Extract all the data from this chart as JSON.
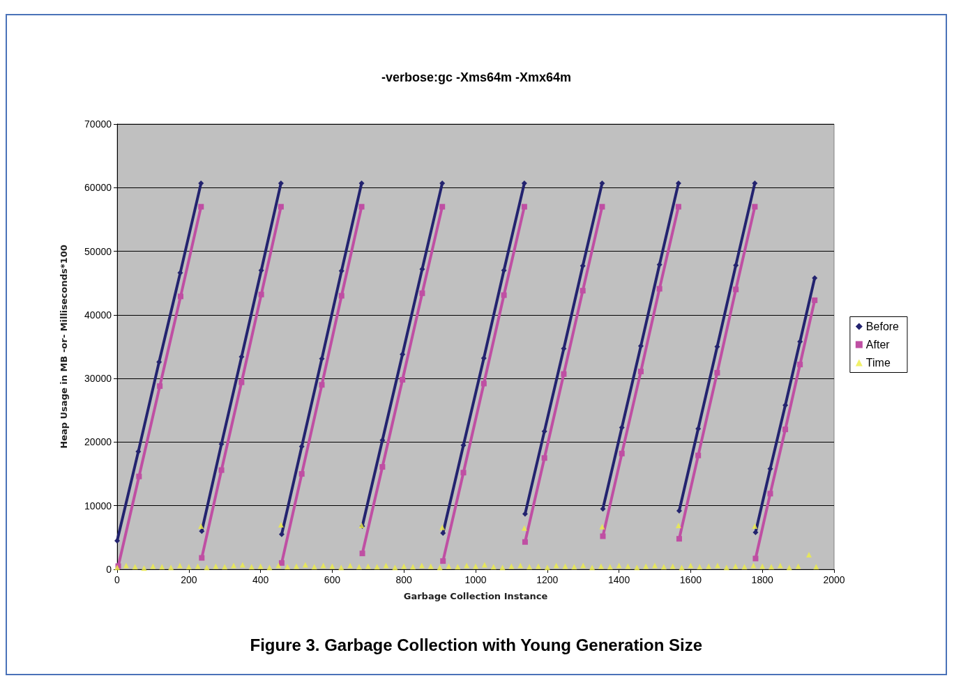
{
  "chart_data": {
    "type": "scatter",
    "title": "-verbose:gc -Xms64m -Xmx64m",
    "xlabel": "Garbage Collection Instance",
    "ylabel": "Heap Usage in MB -or- Milliseconds*100",
    "annotations": [
      "Figure 3. Garbage Collection with Young Generation Size"
    ],
    "xlim": [
      0,
      2000
    ],
    "xticks": [
      0,
      200,
      400,
      600,
      800,
      1000,
      1200,
      1400,
      1600,
      1800,
      2000
    ],
    "ylim": [
      0,
      70000
    ],
    "yticks": [
      0,
      10000,
      20000,
      30000,
      40000,
      50000,
      60000,
      70000
    ],
    "grid": "y",
    "legend": "right",
    "series": [
      {
        "name": "Before",
        "color": "#23236f",
        "type": "line",
        "marker": "diamond",
        "x": [
          0,
          59,
          117,
          176,
          234,
          235,
          236,
          291,
          347,
          402,
          457,
          458,
          459,
          515,
          571,
          626,
          682,
          683,
          684,
          740,
          796,
          851,
          907,
          908,
          909,
          966,
          1023,
          1079,
          1136,
          1137,
          1138,
          1192,
          1246,
          1299,
          1353,
          1354,
          1355,
          1408,
          1461,
          1513,
          1566,
          1567,
          1568,
          1621,
          1674,
          1726,
          1779,
          1780,
          1781,
          1822,
          1864,
          1905,
          1946
        ],
        "values": [
          4500,
          18500,
          32600,
          46600,
          60700,
          null,
          6000,
          19700,
          33400,
          47000,
          60700,
          null,
          5500,
          19300,
          33100,
          46900,
          60700,
          null,
          6800,
          20300,
          33800,
          47200,
          60700,
          null,
          5700,
          19500,
          33200,
          47000,
          60700,
          null,
          8700,
          21700,
          34700,
          47700,
          60700,
          null,
          9500,
          22300,
          35100,
          47900,
          60700,
          null,
          9200,
          22100,
          35000,
          47800,
          60700,
          null,
          5800,
          15800,
          25800,
          35800,
          45800
        ]
      },
      {
        "name": "After",
        "color": "#bf4fa3",
        "type": "line",
        "marker": "square",
        "x": [
          3,
          61,
          119,
          177,
          234,
          235,
          236,
          291,
          347,
          402,
          457,
          458,
          459,
          515,
          571,
          626,
          682,
          683,
          684,
          740,
          796,
          851,
          907,
          908,
          909,
          966,
          1023,
          1079,
          1136,
          1137,
          1138,
          1192,
          1246,
          1299,
          1353,
          1354,
          1355,
          1408,
          1461,
          1513,
          1566,
          1567,
          1568,
          1621,
          1674,
          1726,
          1779,
          1780,
          1781,
          1822,
          1864,
          1905,
          1946
        ],
        "values": [
          500,
          14600,
          28800,
          42900,
          57000,
          null,
          1800,
          15600,
          29400,
          43200,
          57000,
          null,
          1000,
          15000,
          29000,
          43000,
          57000,
          null,
          2500,
          16100,
          29800,
          43400,
          57000,
          null,
          1300,
          15200,
          29200,
          43100,
          57000,
          null,
          4300,
          17500,
          30700,
          43800,
          57000,
          null,
          5200,
          18200,
          31100,
          44100,
          57000,
          null,
          4800,
          17900,
          30900,
          44000,
          57000,
          null,
          1700,
          11900,
          22000,
          32200,
          42300
        ]
      },
      {
        "name": "Time",
        "color": "#eeee44",
        "type": "scatter",
        "marker": "triangle",
        "x": [
          0,
          25,
          50,
          75,
          100,
          125,
          150,
          175,
          200,
          225,
          234,
          250,
          275,
          300,
          325,
          350,
          375,
          400,
          425,
          450,
          457,
          475,
          500,
          525,
          550,
          575,
          600,
          625,
          650,
          675,
          682,
          700,
          725,
          750,
          775,
          800,
          825,
          850,
          875,
          900,
          907,
          925,
          950,
          975,
          1000,
          1025,
          1050,
          1075,
          1100,
          1125,
          1136,
          1150,
          1175,
          1200,
          1225,
          1250,
          1275,
          1300,
          1325,
          1350,
          1353,
          1375,
          1400,
          1425,
          1450,
          1475,
          1500,
          1525,
          1550,
          1566,
          1575,
          1600,
          1625,
          1650,
          1675,
          1700,
          1725,
          1750,
          1775,
          1779,
          1800,
          1825,
          1850,
          1875,
          1900,
          1930,
          1950
        ],
        "values": [
          300,
          600,
          400,
          200,
          500,
          400,
          300,
          600,
          400,
          500,
          6800,
          300,
          500,
          400,
          600,
          700,
          400,
          500,
          300,
          600,
          7000,
          400,
          500,
          700,
          400,
          600,
          500,
          300,
          600,
          400,
          6900,
          500,
          400,
          600,
          300,
          500,
          400,
          600,
          500,
          300,
          6600,
          500,
          400,
          600,
          500,
          700,
          400,
          300,
          500,
          600,
          6500,
          400,
          500,
          300,
          600,
          500,
          400,
          600,
          300,
          500,
          6700,
          400,
          600,
          500,
          300,
          500,
          600,
          400,
          500,
          6900,
          300,
          600,
          400,
          500,
          600,
          300,
          500,
          400,
          600,
          6800,
          500,
          400,
          600,
          300,
          500,
          2300,
          400
        ]
      }
    ]
  }
}
